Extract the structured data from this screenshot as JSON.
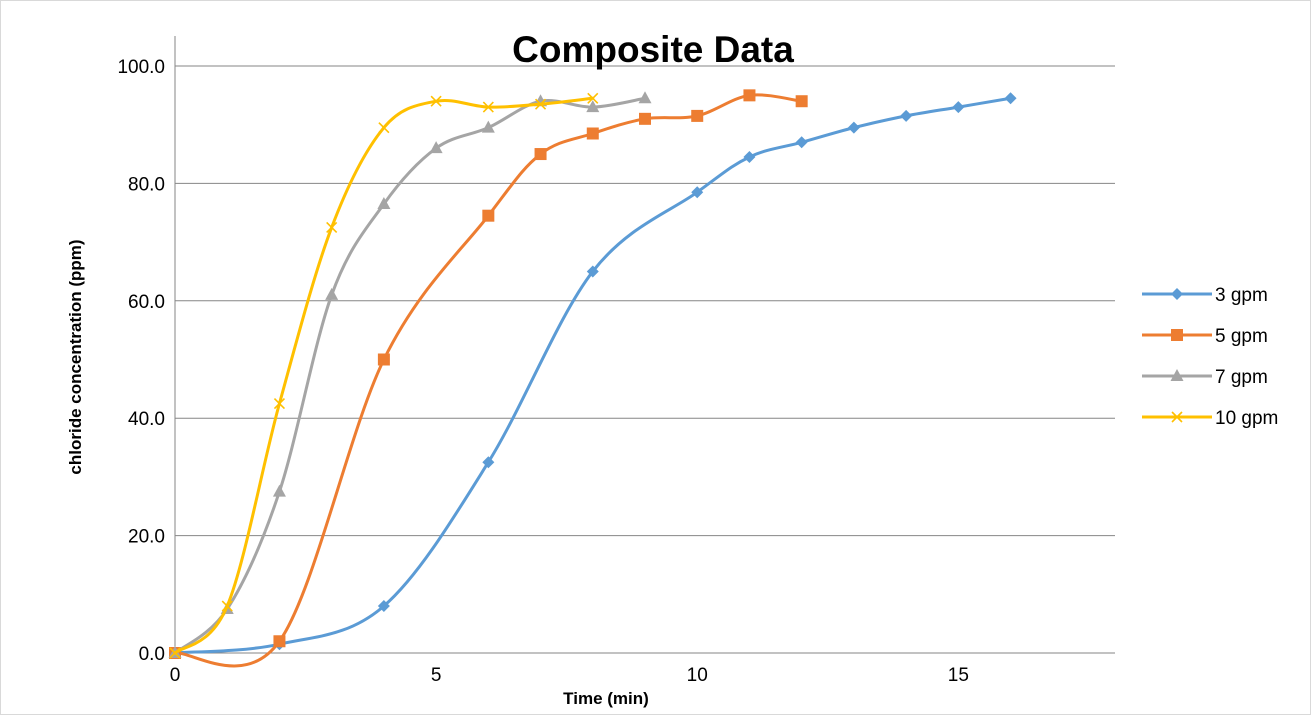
{
  "chart_data": {
    "type": "line",
    "title": "Composite Data",
    "xlabel": "Time (min)",
    "ylabel": "chloride concentration (ppm)",
    "xlim": [
      0,
      18
    ],
    "ylim": [
      0,
      100
    ],
    "xticks": [
      0,
      5,
      10,
      15
    ],
    "xtick_labels": [
      "0",
      "5",
      "10",
      "15"
    ],
    "yticks": [
      0,
      20,
      40,
      60,
      80,
      100
    ],
    "ytick_labels": [
      "0.0",
      "20.0",
      "40.0",
      "60.0",
      "80.0",
      "100.0"
    ],
    "grid": "horizontal",
    "legend_position": "right",
    "series": [
      {
        "name": "3 gpm",
        "color": "#5B9BD5",
        "marker": "diamond",
        "x": [
          0,
          2,
          4,
          6,
          8,
          10,
          11,
          12,
          13,
          14,
          15,
          16
        ],
        "y": [
          0.0,
          1.5,
          8.0,
          32.5,
          65.0,
          78.5,
          84.5,
          87.0,
          89.5,
          91.5,
          93.0,
          94.5
        ]
      },
      {
        "name": "5 gpm",
        "color": "#ED7D31",
        "marker": "square",
        "x": [
          0,
          2,
          4,
          6,
          7,
          8,
          9,
          10,
          11,
          12
        ],
        "y": [
          0.0,
          2.0,
          50.0,
          74.5,
          85.0,
          88.5,
          91.0,
          91.5,
          95.0,
          94.0
        ]
      },
      {
        "name": "7 gpm",
        "color": "#A5A5A5",
        "marker": "triangle",
        "x": [
          0,
          1,
          2,
          3,
          4,
          5,
          6,
          7,
          8,
          9
        ],
        "y": [
          0.0,
          7.5,
          27.5,
          61.0,
          76.5,
          86.0,
          89.5,
          94.0,
          93.0,
          94.5
        ]
      },
      {
        "name": "10 gpm",
        "color": "#FFC000",
        "marker": "x",
        "x": [
          0,
          1,
          2,
          3,
          4,
          5,
          6,
          7,
          8
        ],
        "y": [
          0.0,
          8.0,
          42.5,
          72.5,
          89.5,
          94.0,
          93.0,
          93.5,
          94.5
        ]
      }
    ]
  }
}
